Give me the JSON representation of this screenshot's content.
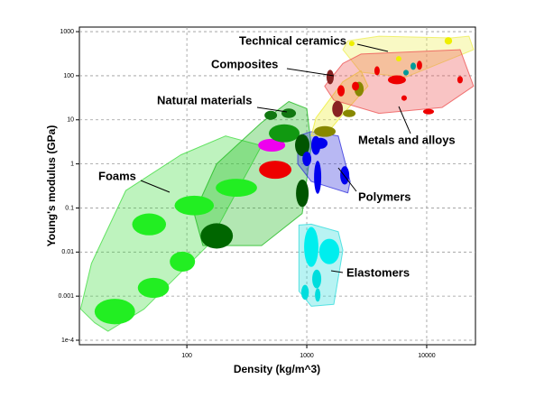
{
  "chart_data": {
    "type": "ashby",
    "x_label": "Density (kg/m^3)",
    "y_label": "Young's modulus (GPa)",
    "log_x": true,
    "log_y": true,
    "grid": true,
    "xlim": [
      12.7,
      25500
    ],
    "ylim": [
      7.9e-05,
      1270
    ],
    "xticks": [
      100,
      1000,
      10000
    ],
    "yticks": [
      1000,
      100,
      10,
      1,
      0.1,
      0.01,
      0.001,
      {
        "value": 0.0001,
        "label": "1e-4"
      }
    ],
    "series": [
      {
        "name": "Foams",
        "color": "#44dd44",
        "envelope": {
          "x": [
            17,
            13,
            16,
            31,
            89,
            210,
            420,
            149,
            44,
            22
          ],
          "y": [
            0.00025,
            0.00051,
            0.0055,
            0.25,
            1.6,
            4.3,
            2.6,
            0.014,
            0.00051,
            0.00016
          ]
        },
        "ellipses": [
          {
            "x": [
              17,
              37
            ],
            "y": [
              0.00023,
              0.00087
            ],
            "color": "#22ee22"
          },
          {
            "x": [
              39,
              71
            ],
            "y": [
              0.00091,
              0.0026
            ],
            "color": "#22ee22"
          },
          {
            "x": [
              72,
              117
            ],
            "y": [
              0.0036,
              0.0102
            ],
            "color": "#22ee22"
          },
          {
            "x": [
              35,
              67
            ],
            "y": [
              0.024,
              0.075
            ],
            "color": "#22ee22"
          },
          {
            "x": [
              79,
              168
            ],
            "y": [
              0.068,
              0.19
            ],
            "color": "#22ee22"
          },
          {
            "x": [
              174,
              385
            ],
            "y": [
              0.18,
              0.46
            ],
            "color": "#22ee22"
          }
        ]
      },
      {
        "name": "Natural materials",
        "color": "#22bb22",
        "envelope": {
          "x": [
            136,
            115,
            177,
            420,
            708,
            1000,
            1090,
            916,
            420
          ],
          "y": [
            0.014,
            0.075,
            1.0,
            8.7,
            26,
            18,
            2.6,
            0.075,
            0.014
          ]
        },
        "ellipses": [
          {
            "x": [
              130,
              242
            ],
            "y": [
              0.012,
              0.045
            ],
            "color": "#006600"
          },
          {
            "x": [
              400,
              745
            ],
            "y": [
              0.46,
              1.18
            ],
            "color": "#ee0000"
          },
          {
            "x": [
              393,
              661
            ],
            "y": [
              1.9,
              3.7
            ],
            "color": "#ee00ee"
          },
          {
            "x": [
              483,
              871
            ],
            "y": [
              3.1,
              7.9
            ],
            "color": "#119911"
          },
          {
            "x": [
              615,
              813
            ],
            "y": [
              11,
              18
            ],
            "color": "#117711"
          },
          {
            "x": [
              444,
              565
            ],
            "y": [
              10,
              16
            ],
            "color": "#117711"
          },
          {
            "x": [
              798,
              1054
            ],
            "y": [
              1.5,
              4.7
            ],
            "color": "#005500"
          },
          {
            "x": [
              813,
              1036
            ],
            "y": [
              0.105,
              0.44
            ],
            "color": "#005500"
          }
        ]
      },
      {
        "name": "Polymers",
        "color": "#3333dd",
        "envelope": {
          "x": [
            841,
            1090,
            1830,
            2300,
            2200,
            1090,
            841
          ],
          "y": [
            4.3,
            5.4,
            4.3,
            0.4,
            0.22,
            0.4,
            1.0
          ]
        },
        "ellipses": [
          {
            "x": [
              1090,
              1300
            ],
            "y": [
              1.6,
              4.3
            ],
            "color": "#0000ee"
          },
          {
            "x": [
              1150,
              1320
            ],
            "y": [
              0.21,
              1.18
            ],
            "color": "#0000ee"
          },
          {
            "x": [
              920,
              1090
            ],
            "y": [
              0.89,
              1.9
            ],
            "color": "#0000ee"
          },
          {
            "x": [
              1130,
              1490
            ],
            "y": [
              2.2,
              3.9
            ],
            "color": "#0000ee"
          },
          {
            "x": [
              1900,
              2260
            ],
            "y": [
              0.34,
              0.89
            ],
            "color": "#0000ee"
          }
        ]
      },
      {
        "name": "Elastomers",
        "color": "#33dddd",
        "envelope": {
          "x": [
            860,
            1090,
            1830,
            2000,
            1680,
            1090,
            860
          ],
          "y": [
            0.041,
            0.043,
            0.029,
            0.011,
            0.00065,
            0.00059,
            0.0013
          ]
        },
        "ellipses": [
          {
            "x": [
              950,
              1250
            ],
            "y": [
              0.0046,
              0.037
            ],
            "color": "#00eeee"
          },
          {
            "x": [
              1270,
              1870
            ],
            "y": [
              0.0053,
              0.02
            ],
            "color": "#00eeee"
          },
          {
            "x": [
              1110,
              1320
            ],
            "y": [
              0.0015,
              0.004
            ],
            "color": "#00dddd"
          },
          {
            "x": [
              900,
              1040
            ],
            "y": [
              0.00083,
              0.0018
            ],
            "color": "#00dddd"
          },
          {
            "x": [
              1170,
              1300
            ],
            "y": [
              0.00075,
              0.0015
            ],
            "color": "#00dddd"
          }
        ]
      },
      {
        "name": "Composites",
        "color": "#eeee33",
        "envelope": {
          "x": [
            1090,
            1190,
            2000,
            2830,
            3240,
            2200,
            1410
          ],
          "y": [
            4.3,
            11,
            73,
            130,
            58,
            18,
            4.3
          ]
        },
        "ellipses": [
          {
            "x": [
              1150,
              1740
            ],
            "y": [
              4.1,
              7.2
            ],
            "color": "#888800"
          },
          {
            "x": [
              1630,
              2000
            ],
            "y": [
              11.5,
              27
            ],
            "color": "#882222"
          },
          {
            "x": [
              1460,
              1680
            ],
            "y": [
              64,
              136
            ],
            "color": "#882222"
          },
          {
            "x": [
              2500,
              2980
            ],
            "y": [
              34,
              73
            ],
            "color": "#888800"
          },
          {
            "x": [
              2000,
              2550
            ],
            "y": [
              11.5,
              17
            ],
            "color": "#888800"
          }
        ]
      },
      {
        "name": "Technical ceramics",
        "color": "#eeee55",
        "envelope": {
          "x": [
            2000,
            2200,
            4000,
            16000,
            22500,
            24600,
            6700,
            2830
          ],
          "y": [
            390,
            620,
            790,
            720,
            790,
            390,
            93,
            120
          ]
        },
        "ellipses": [
          {
            "x": [
              14100,
              16300
            ],
            "y": [
              510,
              750
            ],
            "color": "#eeee00"
          },
          {
            "x": [
              2250,
              2500
            ],
            "y": [
              470,
              620
            ],
            "color": "#eeee00"
          },
          {
            "x": [
              5550,
              6150
            ],
            "y": [
              210,
              280
            ],
            "color": "#eeee00"
          },
          {
            "x": [
              7330,
              8130
            ],
            "y": [
              136,
              199
            ],
            "color": "#009999"
          },
          {
            "x": [
              6380,
              7080
            ],
            "y": [
              102,
              136
            ],
            "color": "#009999"
          }
        ]
      },
      {
        "name": "Metals and alloys",
        "color": "#ee5555",
        "envelope": {
          "x": [
            1410,
            2000,
            2830,
            19000,
            24600,
            13400,
            4000,
            1680
          ],
          "y": [
            58,
            190,
            310,
            390,
            58,
            19,
            14,
            28
          ]
        },
        "ellipses": [
          {
            "x": [
              4750,
              6710
            ],
            "y": [
              64,
              102
            ],
            "color": "#ee0000"
          },
          {
            "x": [
              8270,
              9160
            ],
            "y": [
              136,
              219
            ],
            "color": "#ee0000"
          },
          {
            "x": [
              9330,
              11500
            ],
            "y": [
              13.3,
              17.7
            ],
            "color": "#ee0000"
          },
          {
            "x": [
              1800,
              2070
            ],
            "y": [
              34,
              61
            ],
            "color": "#ee0000"
          },
          {
            "x": [
              2380,
              2730
            ],
            "y": [
              46,
              73
            ],
            "color": "#ee0000"
          },
          {
            "x": [
              18000,
              20000
            ],
            "y": [
              67,
              98
            ],
            "color": "#ee0000"
          },
          {
            "x": [
              3660,
              4060
            ],
            "y": [
              102,
              164
            ],
            "color": "#ee0000"
          },
          {
            "x": [
              6150,
              6830
            ],
            "y": [
              27,
              36
            ],
            "color": "#ee0000"
          }
        ]
      }
    ]
  }
}
